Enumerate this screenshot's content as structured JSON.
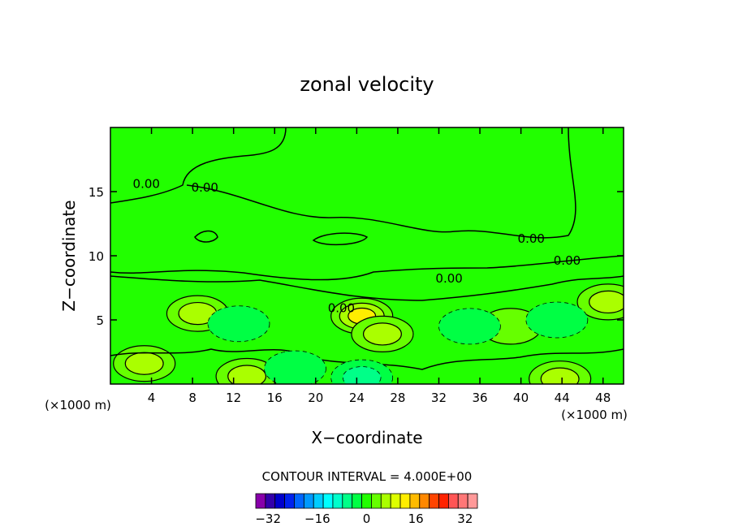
{
  "chart_data": {
    "type": "heatmap",
    "subtype": "filled-contour",
    "title": "zonal velocity",
    "xlabel": "X−coordinate",
    "ylabel": "Z−coordinate",
    "x_unit_label_left": "(×1000 m)",
    "x_unit_label_right": "(×1000 m)",
    "xlim": [
      0,
      50
    ],
    "ylim": [
      0,
      20
    ],
    "x_ticks": [
      4,
      8,
      12,
      16,
      20,
      24,
      28,
      32,
      36,
      40,
      44,
      48
    ],
    "y_ticks": [
      5,
      10,
      15
    ],
    "contour_labels": [
      {
        "text": "0.00",
        "x": 3.5,
        "y": 15.3
      },
      {
        "text": "0.00",
        "x": 9.2,
        "y": 15.0
      },
      {
        "text": "0.00",
        "x": 41.0,
        "y": 11.0
      },
      {
        "text": "0.00",
        "x": 44.5,
        "y": 9.3
      },
      {
        "text": "0.00",
        "x": 33.0,
        "y": 7.9
      },
      {
        "text": "0.00",
        "x": 22.5,
        "y": 5.6
      }
    ],
    "field_background": {
      "value": 0,
      "color": "#22ff00"
    },
    "features": [
      {
        "kind": "positive",
        "value": 8,
        "x": 8.5,
        "y": 5.5
      },
      {
        "kind": "positive",
        "value": 8,
        "x": 3.3,
        "y": 1.6
      },
      {
        "kind": "positive",
        "value": 8,
        "x": 13.3,
        "y": 0.6
      },
      {
        "kind": "positive",
        "value": 12,
        "x": 24.5,
        "y": 5.3
      },
      {
        "kind": "positive",
        "value": 8,
        "x": 26.5,
        "y": 3.9
      },
      {
        "kind": "positive",
        "value": 4,
        "x": 39.0,
        "y": 4.5
      },
      {
        "kind": "positive",
        "value": 8,
        "x": 43.8,
        "y": 0.4
      },
      {
        "kind": "positive",
        "value": 8,
        "x": 48.5,
        "y": 6.4
      },
      {
        "kind": "negative",
        "value": -4,
        "x": 12.5,
        "y": 4.7
      },
      {
        "kind": "negative",
        "value": -8,
        "x": 24.5,
        "y": 0.5
      },
      {
        "kind": "negative",
        "value": -4,
        "x": 43.5,
        "y": 5.0
      },
      {
        "kind": "negative",
        "value": -4,
        "x": 35.0,
        "y": 4.5
      },
      {
        "kind": "negative",
        "value": -4,
        "x": 18.0,
        "y": 1.2
      }
    ],
    "contour_interval_label": "CONTOUR INTERVAL = 4.000E+00",
    "contour_interval": 4.0,
    "colorbar": {
      "ticks": [
        -32,
        -16,
        0,
        16,
        32
      ],
      "tick_labels": [
        "−32",
        "−16",
        "0",
        "16",
        "32"
      ],
      "range": [
        -36,
        36
      ],
      "colors": [
        "#8800aa",
        "#3300aa",
        "#0000cc",
        "#0022ee",
        "#0066ff",
        "#0099ff",
        "#00ccff",
        "#00ffff",
        "#00ffcc",
        "#00ff88",
        "#00ff44",
        "#22ff00",
        "#66ff00",
        "#aaff00",
        "#ddff00",
        "#ffee00",
        "#ffbb00",
        "#ff8800",
        "#ff4400",
        "#ff2200",
        "#ff5555",
        "#ff7777",
        "#ff9999"
      ]
    },
    "grid": false,
    "legend": "none"
  }
}
